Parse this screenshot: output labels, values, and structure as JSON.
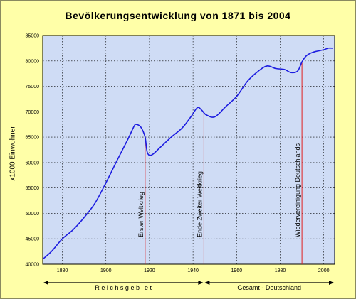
{
  "colors": {
    "frame_bg": "#ffffa8",
    "plot_bg": "#cfdcf5",
    "line": "#1c1ce0",
    "event_line": "#e02020",
    "grid": "#000000"
  },
  "chart_data": {
    "type": "line",
    "title": "Bevölkerungsentwicklung von 1871 bis 2004",
    "ylabel": "x1000 Einwohner",
    "xlabel": "",
    "xlim": [
      1871,
      2005
    ],
    "ylim": [
      40000,
      85000
    ],
    "y_ticks": [
      {
        "value": 40000,
        "label": "40000"
      },
      {
        "value": 45000,
        "label": "45000"
      },
      {
        "value": 50000,
        "label": "50000"
      },
      {
        "value": 55000,
        "label": "55000"
      },
      {
        "value": 60000,
        "label": "60000"
      },
      {
        "value": 65000,
        "label": "65000"
      },
      {
        "value": 70000,
        "label": "70000"
      },
      {
        "value": 75000,
        "label": "75000"
      },
      {
        "value": 80000,
        "label": "80000"
      },
      {
        "value": 85000,
        "label": "85000"
      }
    ],
    "x_ticks": [
      {
        "value": 1880,
        "label": "1880"
      },
      {
        "value": 1900,
        "label": "1900"
      },
      {
        "value": 1920,
        "label": "1920"
      },
      {
        "value": 1940,
        "label": "1940"
      },
      {
        "value": 1960,
        "label": "1960"
      },
      {
        "value": 1980,
        "label": "1980"
      },
      {
        "value": 2000,
        "label": "2000"
      }
    ],
    "grid": true,
    "series": [
      {
        "x": [
          1871,
          1875,
          1880,
          1885,
          1890,
          1895,
          1900,
          1905,
          1910,
          1913,
          1914,
          1916,
          1918,
          1919,
          1921,
          1925,
          1930,
          1935,
          1939,
          1942,
          1944,
          1946,
          1950,
          1955,
          1960,
          1965,
          1970,
          1974,
          1978,
          1982,
          1985,
          1988,
          1990,
          1992,
          1995,
          2000,
          2002,
          2004
        ],
        "y": [
          41000,
          42500,
          45000,
          46800,
          49200,
          52000,
          56000,
          60300,
          64500,
          67200,
          67500,
          67000,
          65000,
          62000,
          61500,
          63000,
          65000,
          66800,
          69000,
          70800,
          70300,
          69400,
          69000,
          71000,
          73000,
          76000,
          78000,
          79000,
          78500,
          78300,
          77700,
          78000,
          79800,
          81000,
          81700,
          82200,
          82500,
          82500
        ]
      }
    ],
    "events": [
      {
        "year": 1918,
        "label": "Erster Weltkrieg"
      },
      {
        "year": 1945,
        "label": "Ende Zweiter Weltkrieg"
      },
      {
        "year": 1990,
        "label": "Wiedervereinigung Deutschlands"
      }
    ],
    "periods": [
      {
        "from": 1871,
        "to": 1945,
        "label": "R e i c h s g e b i e t"
      },
      {
        "from": 1945,
        "to": 2005,
        "label": "Gesamt - Deutschland"
      }
    ]
  }
}
